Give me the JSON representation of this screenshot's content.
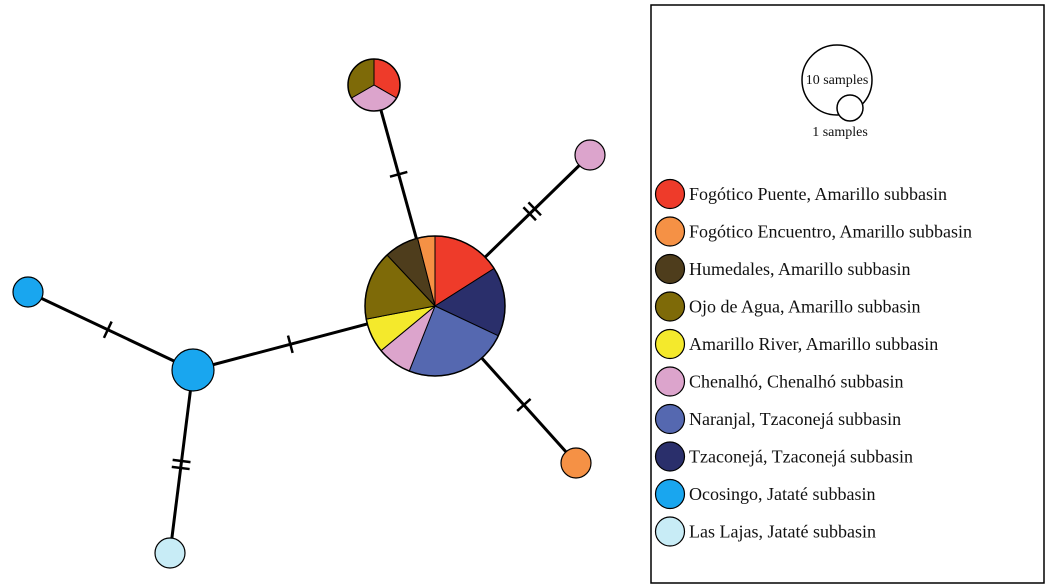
{
  "colors": {
    "fogotico_puente": "#ee3b2a",
    "fogotico_encuentro": "#f59145",
    "humedales": "#4e3d1c",
    "ojo_de_agua": "#7e6a08",
    "amarillo_river": "#f4e92c",
    "chenalho": "#dca4cc",
    "naranjal": "#5568b0",
    "tzaconeja": "#2a2f6b",
    "ocosingo": "#19a6ef",
    "las_lajas": "#c8ecf6"
  },
  "legend": {
    "size_large_label": "10 samples",
    "size_small_label": "1 samples",
    "entries": [
      {
        "label": "Fogótico Puente, Amarillo subbasin",
        "color_key": "fogotico_puente"
      },
      {
        "label": "Fogótico Encuentro, Amarillo subbasin",
        "color_key": "fogotico_encuentro"
      },
      {
        "label": "Humedales, Amarillo subbasin",
        "color_key": "humedales"
      },
      {
        "label": "Ojo de Agua, Amarillo subbasin",
        "color_key": "ojo_de_agua"
      },
      {
        "label": "Amarillo River, Amarillo subbasin",
        "color_key": "amarillo_river"
      },
      {
        "label": "Chenalhó, Chenalhó subbasin",
        "color_key": "chenalho"
      },
      {
        "label": "Naranjal, Tzaconejá subbasin",
        "color_key": "naranjal"
      },
      {
        "label": "Tzaconejá, Tzaconejá subbasin",
        "color_key": "tzaconeja"
      },
      {
        "label": "Ocosingo, Jataté subbasin",
        "color_key": "ocosingo"
      },
      {
        "label": "Las Lajas, Jataté subbasin",
        "color_key": "las_lajas"
      }
    ]
  },
  "network": {
    "haplotypes": [
      {
        "id": "H_center",
        "slices": [
          {
            "color_key": "fogotico_puente",
            "weight": 2
          },
          {
            "color_key": "tzaconeja",
            "weight": 2
          },
          {
            "color_key": "naranjal",
            "weight": 3
          },
          {
            "color_key": "chenalho",
            "weight": 1
          },
          {
            "color_key": "amarillo_river",
            "weight": 1
          },
          {
            "color_key": "ojo_de_agua",
            "weight": 2
          },
          {
            "color_key": "humedales",
            "weight": 1
          },
          {
            "color_key": "fogotico_encuentro",
            "weight": 0.5
          }
        ]
      },
      {
        "id": "H_top",
        "slices": [
          {
            "color_key": "fogotico_puente",
            "weight": 1
          },
          {
            "color_key": "chenalho",
            "weight": 1
          },
          {
            "color_key": "ojo_de_agua",
            "weight": 1
          }
        ]
      },
      {
        "id": "H_pink",
        "slices": [
          {
            "color_key": "chenalho",
            "weight": 1
          }
        ]
      },
      {
        "id": "H_orange",
        "slices": [
          {
            "color_key": "fogotico_encuentro",
            "weight": 1
          }
        ]
      },
      {
        "id": "H_ocosingo_big",
        "slices": [
          {
            "color_key": "ocosingo",
            "weight": 2
          }
        ]
      },
      {
        "id": "H_ocosingo_small",
        "slices": [
          {
            "color_key": "ocosingo",
            "weight": 1
          }
        ]
      },
      {
        "id": "H_lajas",
        "slices": [
          {
            "color_key": "las_lajas",
            "weight": 1
          }
        ]
      }
    ],
    "edges": [
      {
        "from": "H_center",
        "to": "H_top",
        "mutations": 1
      },
      {
        "from": "H_center",
        "to": "H_pink",
        "mutations": 2
      },
      {
        "from": "H_center",
        "to": "H_orange",
        "mutations": 1
      },
      {
        "from": "H_center",
        "to": "H_ocosingo_big",
        "mutations": 1
      },
      {
        "from": "H_ocosingo_big",
        "to": "H_ocosingo_small",
        "mutations": 1
      },
      {
        "from": "H_ocosingo_big",
        "to": "H_lajas",
        "mutations": 2
      }
    ]
  }
}
